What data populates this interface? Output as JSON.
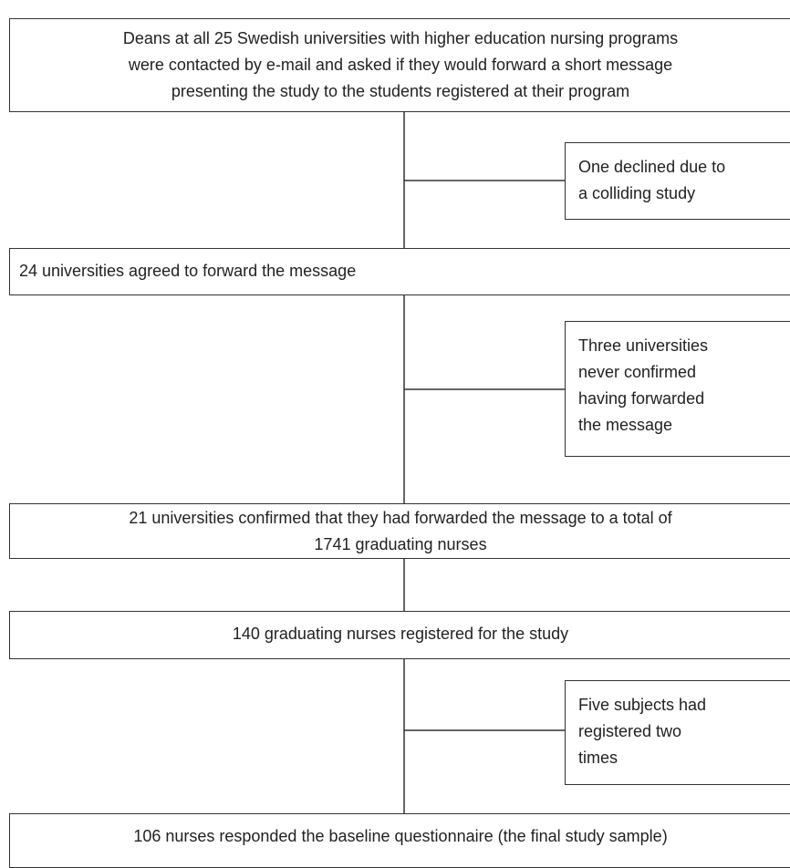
{
  "boxes": [
    {
      "lines": [
        "Deans at all 25 Swedish universities with higher education nursing programs",
        "were contacted by e-mail and asked if they would forward a short message",
        "presenting the study to the students registered at their program"
      ]
    },
    {
      "lines": [
        "24 universities agreed to forward the message"
      ]
    },
    {
      "lines": [
        "21 universities confirmed that they had forwarded the message to a total of",
        "1741 graduating nurses"
      ]
    },
    {
      "lines": [
        "140 graduating nurses registered for the study"
      ]
    },
    {
      "lines": [
        "106 nurses responded the baseline questionnaire (the final study sample)"
      ]
    }
  ],
  "side_notes": [
    {
      "lines": [
        "One declined due to",
        "a colliding study"
      ]
    },
    {
      "lines": [
        "Three universities",
        "never confirmed",
        "having forwarded",
        "the message"
      ]
    },
    {
      "lines": [
        "Five subjects had",
        "registered two",
        "times"
      ]
    }
  ]
}
